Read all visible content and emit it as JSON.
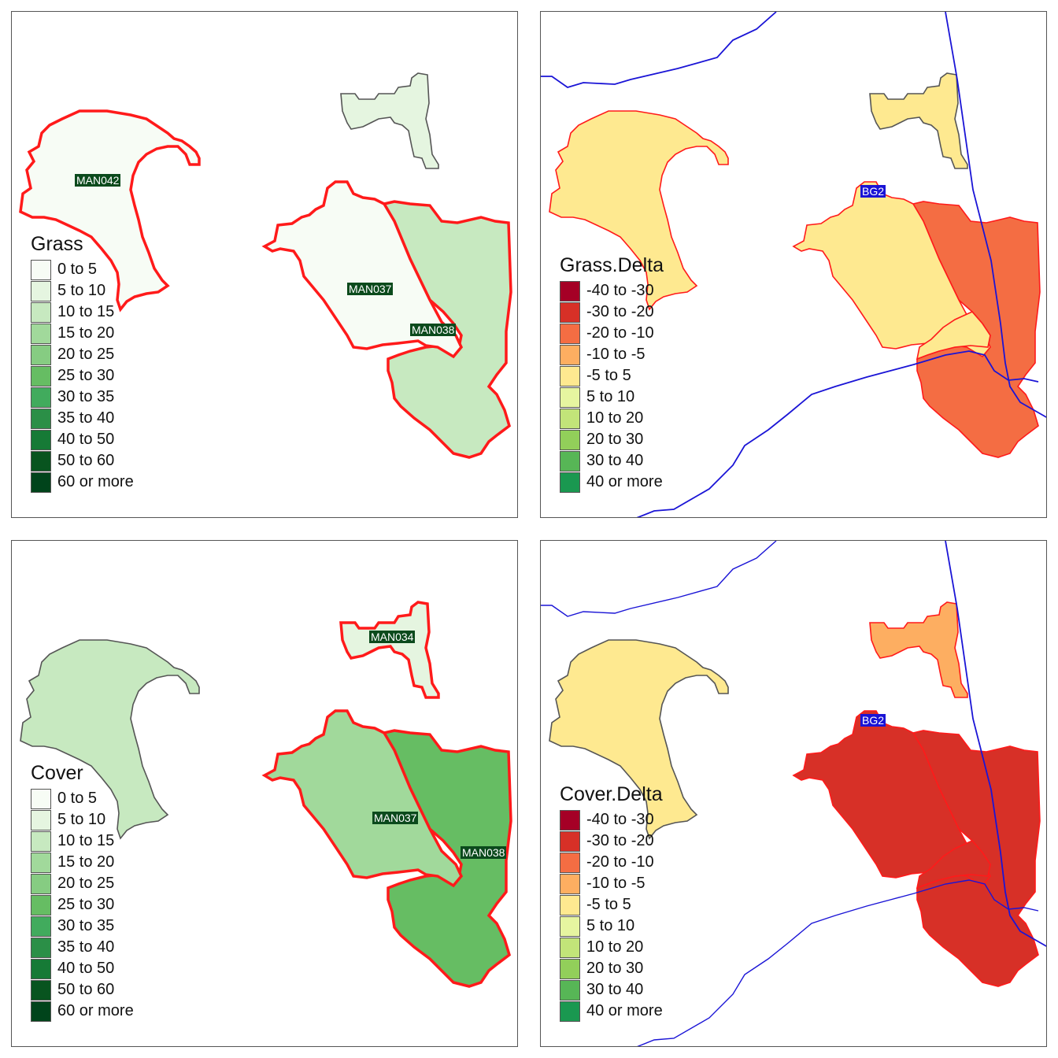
{
  "colors": {
    "grass_scale": [
      "#f7fcf5",
      "#e5f5e0",
      "#c7e9c0",
      "#a1d99b",
      "#86cc82",
      "#66bd63",
      "#41ab5d",
      "#2b8f47",
      "#167a36",
      "#08541f",
      "#00441b"
    ],
    "delta_scale": [
      "#a50026",
      "#d73027",
      "#f46d43",
      "#fdae61",
      "#fee990",
      "#e6f5a0",
      "#c2e479",
      "#92cf5a",
      "#57b656",
      "#1a9850"
    ],
    "highlight_outline": "#ff1a1a",
    "normal_outline": "#555555",
    "river": "#1a14d6"
  },
  "panels": [
    {
      "id": "grass",
      "legend": {
        "title": "Grass",
        "items": [
          "0 to 5",
          "5 to 10",
          "10 to 15",
          "15 to 20",
          "20 to 25",
          "25 to 30",
          "30 to 35",
          "35 to 40",
          "40 to 50",
          "50 to 60",
          "60 or more"
        ]
      },
      "labels": [
        "MAN042",
        "MAN037",
        "MAN038"
      ]
    },
    {
      "id": "grass-delta",
      "legend": {
        "title": "Grass.Delta",
        "items": [
          "-40 to -30",
          "-30 to -20",
          "-20 to -10",
          "-10 to -5",
          "-5 to 5",
          "5 to 10",
          "10 to 20",
          "20 to 30",
          "30 to 40",
          "40 or more"
        ]
      },
      "labels": [
        "BG2"
      ]
    },
    {
      "id": "cover",
      "legend": {
        "title": "Cover",
        "items": [
          "0 to 5",
          "5 to 10",
          "10 to 15",
          "15 to 20",
          "20 to 25",
          "25 to 30",
          "30 to 35",
          "35 to 40",
          "40 to 50",
          "50 to 60",
          "60 or more"
        ]
      },
      "labels": [
        "MAN034",
        "MAN037",
        "MAN038"
      ]
    },
    {
      "id": "cover-delta",
      "legend": {
        "title": "Cover.Delta",
        "items": [
          "-40 to -30",
          "-30 to -20",
          "-20 to -10",
          "-10 to -5",
          "-5 to 5",
          "5 to 10",
          "10 to 20",
          "20 to 30",
          "30 to 40",
          "40 or more"
        ]
      },
      "labels": [
        "BG2"
      ]
    }
  ]
}
